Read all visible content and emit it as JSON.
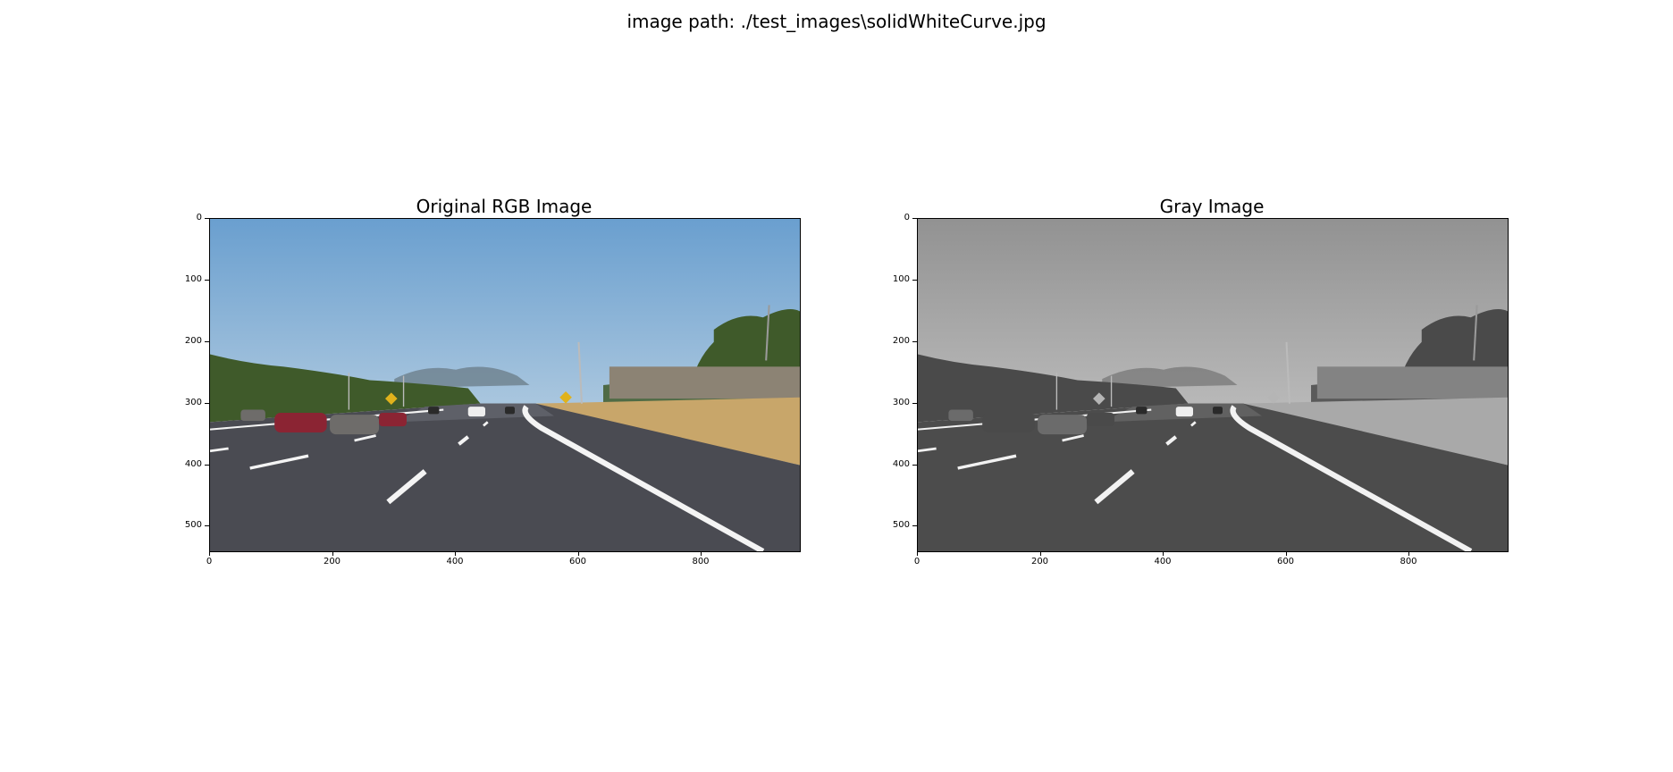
{
  "figure": {
    "suptitle": "image path: ./test_images\\solidWhiteCurve.jpg"
  },
  "panels": [
    {
      "id": "rgb",
      "title": "Original RGB Image",
      "mode": "color",
      "colors": {
        "sky_top": "#6a9fcf",
        "sky_bottom": "#a9c6de",
        "trees": "#3f5a2a",
        "hills": "#6d7f8c",
        "grass": "#c8a66a",
        "road": "#4a4b52",
        "road_far": "#5e6068",
        "fence": "#8c8374",
        "lane": "#f4f4f4",
        "sign": "#e0b21c",
        "car_red": "#8b2433",
        "car_gray": "#6e6c6a"
      }
    },
    {
      "id": "gray",
      "title": "Gray Image",
      "mode": "gray",
      "colors": {
        "sky_top": "#929292",
        "sky_bottom": "#b8b8b8",
        "trees": "#4a4a4a",
        "hills": "#7a7a7a",
        "grass": "#a9a9a9",
        "road": "#4c4c4c",
        "road_far": "#616161",
        "fence": "#838383",
        "lane": "#f2f2f2",
        "sign": "#b5b5b5",
        "car_red": "#4a4a4a",
        "car_gray": "#6b6b6b"
      }
    }
  ],
  "axes": {
    "x_ticks": [
      "0",
      "200",
      "400",
      "600",
      "800"
    ],
    "y_ticks": [
      "0",
      "100",
      "200",
      "300",
      "400",
      "500"
    ],
    "x_range": [
      0,
      960
    ],
    "y_range": [
      0,
      540
    ]
  }
}
